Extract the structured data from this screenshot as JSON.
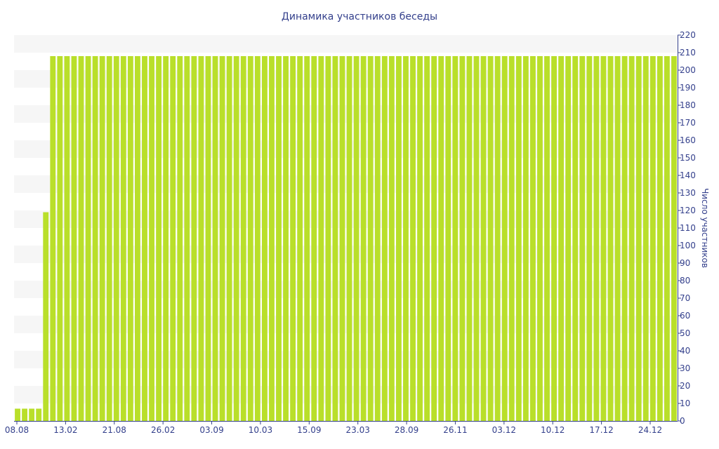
{
  "chart_data": {
    "type": "bar",
    "title": "Динамика участников беседы",
    "ylabel": "Число участников",
    "xlabel": "",
    "ylim": [
      0,
      220
    ],
    "yticks": [
      0,
      10,
      20,
      30,
      40,
      50,
      60,
      70,
      80,
      90,
      100,
      110,
      120,
      130,
      140,
      150,
      160,
      170,
      180,
      190,
      200,
      210,
      220
    ],
    "x_tick_labels": [
      "08.08",
      "13.02",
      "21.08",
      "26.02",
      "03.09",
      "10.03",
      "15.09",
      "23.03",
      "28.09",
      "26.11",
      "03.12",
      "10.12",
      "17.12",
      "24.12"
    ],
    "values": [
      7,
      7,
      7,
      7,
      119,
      208,
      208,
      208,
      208,
      208,
      208,
      208,
      208,
      208,
      208,
      208,
      208,
      208,
      208,
      208,
      208,
      208,
      208,
      208,
      208,
      208,
      208,
      208,
      208,
      208,
      208,
      208,
      208,
      208,
      208,
      208,
      208,
      208,
      208,
      208,
      208,
      208,
      208,
      208,
      208,
      208,
      208,
      208,
      208,
      208,
      208,
      208,
      208,
      208,
      208,
      208,
      208,
      208,
      208,
      208,
      208,
      208,
      208,
      208,
      208,
      208,
      208,
      208,
      208,
      208,
      208,
      208,
      208,
      208,
      208,
      208,
      208,
      208,
      208,
      208,
      208,
      208,
      208,
      208,
      208,
      208,
      208,
      208,
      208,
      208,
      208,
      208,
      208,
      208
    ],
    "colors": {
      "bar": "#b9df2a",
      "band": "#f6f6f6",
      "axis": "#34408c"
    },
    "grid": "alternating horizontal bands",
    "y_axis_side": "right",
    "legend": "none"
  }
}
